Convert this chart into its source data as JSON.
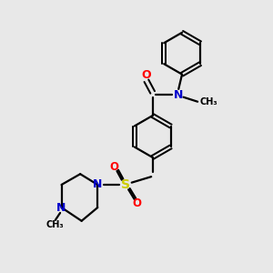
{
  "bg_color": "#e8e8e8",
  "bond_color": "#000000",
  "atom_colors": {
    "O": "#ff0000",
    "N": "#0000cc",
    "S": "#cccc00",
    "C": "#000000"
  }
}
